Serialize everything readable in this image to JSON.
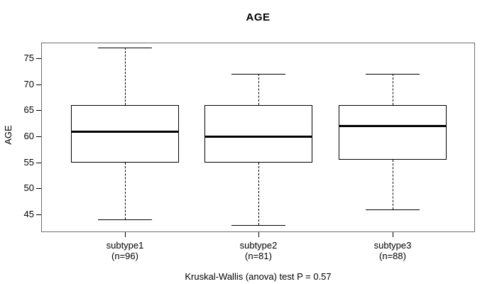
{
  "title": "AGE",
  "footer": "Kruskal-Wallis (anova) test P = 0.57",
  "chart_data": {
    "type": "boxplot",
    "title": "AGE",
    "xlabel": "",
    "ylabel": "AGE",
    "y_ticks": [
      75,
      70,
      65,
      60,
      55,
      50,
      45
    ],
    "ylim": [
      41.6,
      78.0
    ],
    "grid": false,
    "legend": "none",
    "groups": [
      {
        "label": "subtype1",
        "sublabel": "(n=96)",
        "n": 96,
        "whisker_low": 44,
        "q1": 55,
        "median": 61,
        "q3": 66,
        "whisker_high": 77
      },
      {
        "label": "subtype2",
        "sublabel": "(n=81)",
        "n": 81,
        "whisker_low": 43,
        "q1": 55,
        "median": 60,
        "q3": 66,
        "whisker_high": 72
      },
      {
        "label": "subtype3",
        "sublabel": "(n=88)",
        "n": 88,
        "whisker_low": 46,
        "q1": 55.5,
        "median": 62,
        "q3": 66,
        "whisker_high": 72
      }
    ],
    "annotation": "Kruskal-Wallis (anova) test P = 0.57",
    "colors": {
      "background": "#ffffff",
      "text": "#000000",
      "ink": "#000000",
      "frame": "#6e6e6e",
      "box_border": "#000000",
      "median": "#000000"
    }
  }
}
